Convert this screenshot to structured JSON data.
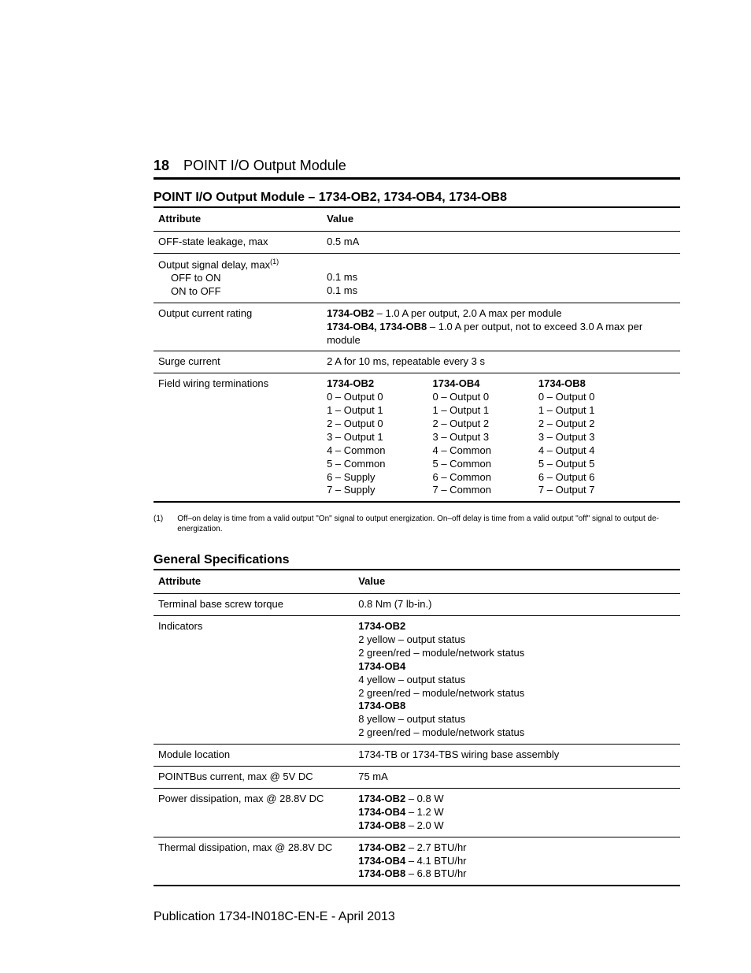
{
  "header": {
    "page_number": "18",
    "title": "POINT I/O Output Module"
  },
  "table1": {
    "title": "POINT I/O Output Module – 1734-OB2, 1734-OB4, 1734-OB8",
    "col_attr": "Attribute",
    "col_val": "Value",
    "rows": {
      "offstate": {
        "attr": "OFF-state leakage, max",
        "val": "0.5 mA"
      },
      "signal_delay": {
        "attr_line1": "Output signal delay, max",
        "attr_sup": "(1)",
        "attr_line2": "OFF to ON",
        "attr_line3": "ON to OFF",
        "val_line1": "0.1 ms",
        "val_line2": "0.1 ms"
      },
      "current_rating": {
        "attr": "Output current rating",
        "val_bold1": "1734-OB2",
        "val_rest1": " – 1.0 A per output, 2.0 A max per module",
        "val_bold2": "1734-OB4, 1734-OB8",
        "val_rest2": " – 1.0 A per output, not to exceed 3.0 A max per module"
      },
      "surge": {
        "attr": "Surge current",
        "val": "2 A for 10 ms, repeatable every 3 s"
      },
      "terminations": {
        "attr": "Field wiring terminations",
        "col1": {
          "head": "1734-OB2",
          "l0": "0 – Output 0",
          "l1": "1 – Output 1",
          "l2": "2 – Output 0",
          "l3": "3 – Output 1",
          "l4": "4 – Common",
          "l5": "5 – Common",
          "l6": "6 – Supply",
          "l7": "7 – Supply"
        },
        "col2": {
          "head": "1734-OB4",
          "l0": "0 – Output 0",
          "l1": "1 – Output 1",
          "l2": "2 – Output 2",
          "l3": "3 – Output 3",
          "l4": "4 – Common",
          "l5": "5 – Common",
          "l6": "6 – Common",
          "l7": "7 – Common"
        },
        "col3": {
          "head": "1734-OB8",
          "l0": "0 – Output 0",
          "l1": "1 – Output 1",
          "l2": "2 – Output 2",
          "l3": "3 – Output 3",
          "l4": "4 – Output 4",
          "l5": "5 – Output 5",
          "l6": "6 – Output 6",
          "l7": "7 – Output 7"
        }
      }
    }
  },
  "footnote": {
    "marker": "(1)",
    "text": "Off–on delay is time from a valid output \"On\" signal to output energization. On–off delay is time from a valid output \"off\" signal to output de-energization."
  },
  "table2": {
    "title": "General Specifications",
    "col_attr": "Attribute",
    "col_val": "Value",
    "rows": {
      "torque": {
        "attr": "Terminal base screw torque",
        "val": "0.8 Nm (7 lb-in.)"
      },
      "indicators": {
        "attr": "Indicators",
        "b1": "1734-OB2",
        "l1a": "2 yellow – output status",
        "l1b": "2 green/red – module/network status",
        "b2": "1734-OB4",
        "l2a": "4 yellow – output status",
        "l2b": "2 green/red – module/network status",
        "b3": "1734-OB8",
        "l3a": "8 yellow – output status",
        "l3b": "2 green/red – module/network status"
      },
      "module_loc": {
        "attr": "Module location",
        "val": "1734-TB or 1734-TBS wiring base assembly"
      },
      "pointbus": {
        "attr": "POINTBus current, max @ 5V DC",
        "val": "75 mA"
      },
      "power": {
        "attr": "Power dissipation, max @ 28.8V DC",
        "b1": "1734-OB2",
        "v1": " – 0.8 W",
        "b2": "1734-OB4",
        "v2": " – 1.2 W",
        "b3": "1734-OB8",
        "v3": " – 2.0 W"
      },
      "thermal": {
        "attr": "Thermal dissipation, max @ 28.8V DC",
        "b1": "1734-OB2",
        "v1": " – 2.7 BTU/hr",
        "b2": "1734-OB4",
        "v2": " – 4.1 BTU/hr",
        "b3": "1734-OB8",
        "v3": " – 6.8 BTU/hr"
      }
    }
  },
  "publication": "Publication 1734-IN018C-EN-E - April 2013"
}
